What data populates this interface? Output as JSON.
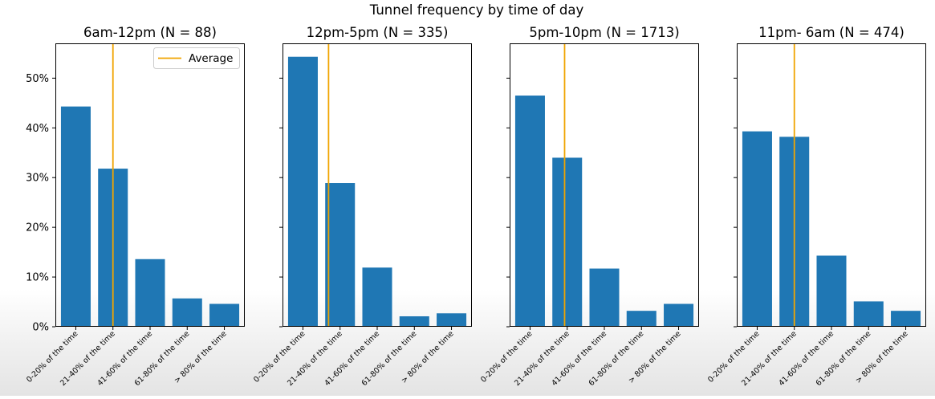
{
  "figure": {
    "title": "Tunnel frequency by time of day"
  },
  "colors": {
    "bar": "#1f77b4",
    "average_line": "#f0a400",
    "axis": "#000000"
  },
  "chart_data": [
    {
      "type": "bar",
      "title": "6am-12pm (N = 88)",
      "categories": [
        "0-20% of the time",
        "21-40% of the time",
        "41-60% of the time",
        "61-80% of the time",
        "> 80% of the time"
      ],
      "values": [
        44.3,
        31.8,
        13.6,
        5.7,
        4.6
      ],
      "average_category_position": 1.0,
      "ylim": [
        0,
        57
      ],
      "yticks": [
        0,
        10,
        20,
        30,
        40,
        50
      ],
      "ytick_labels": [
        "0%",
        "10%",
        "20%",
        "30%",
        "40%",
        "50%"
      ],
      "legend": {
        "label": "Average",
        "placement": "top-right"
      }
    },
    {
      "type": "bar",
      "title": "12pm-5pm (N = 335)",
      "categories": [
        "0-20% of the time",
        "21-40% of the time",
        "41-60% of the time",
        "61-80% of the time",
        "> 80% of the time"
      ],
      "values": [
        54.3,
        28.9,
        11.9,
        2.1,
        2.7
      ],
      "average_category_position": 0.69,
      "ylim": [
        0,
        57
      ]
    },
    {
      "type": "bar",
      "title": "5pm-10pm (N = 1713)",
      "categories": [
        "0-20% of the time",
        "21-40% of the time",
        "41-60% of the time",
        "61-80% of the time",
        "> 80% of the time"
      ],
      "values": [
        46.5,
        34.0,
        11.7,
        3.2,
        4.6
      ],
      "average_category_position": 0.93,
      "ylim": [
        0,
        57
      ]
    },
    {
      "type": "bar",
      "title": "11pm- 6am (N = 474)",
      "categories": [
        "0-20% of the time",
        "21-40% of the time",
        "41-60% of the time",
        "61-80% of the time",
        "> 80% of the time"
      ],
      "values": [
        39.3,
        38.2,
        14.3,
        5.1,
        3.2
      ],
      "average_category_position": 1.0,
      "ylim": [
        0,
        57
      ]
    }
  ]
}
